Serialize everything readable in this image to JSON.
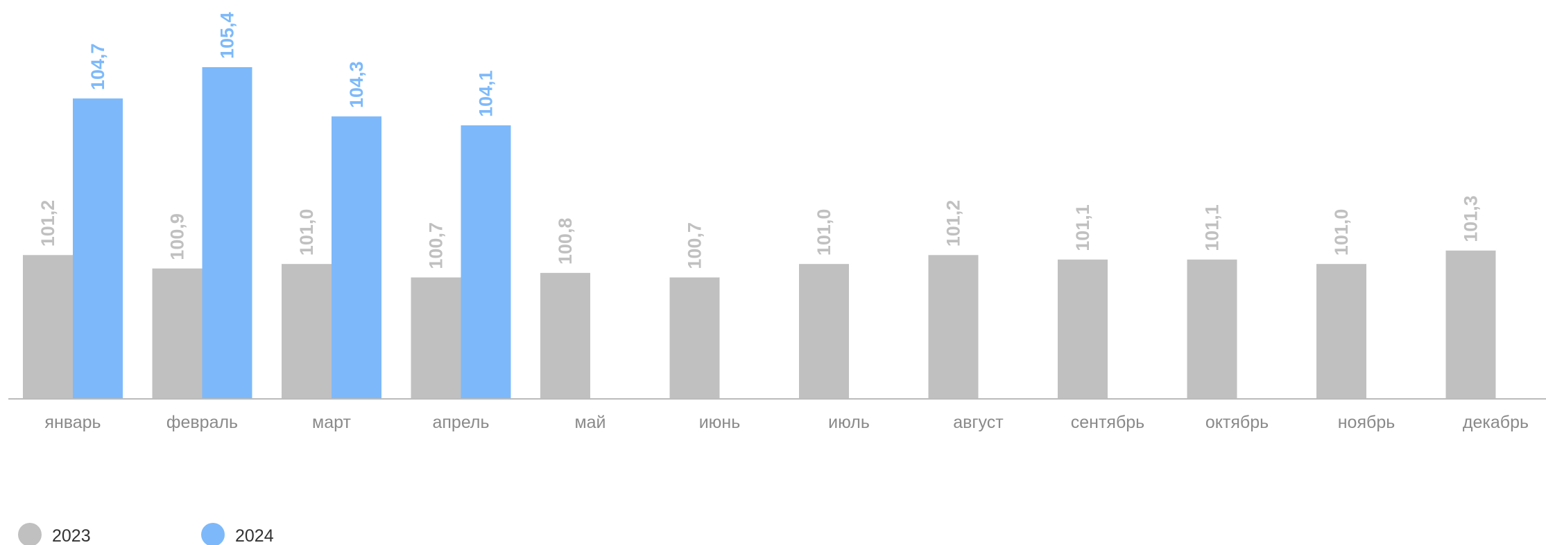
{
  "chart_data": {
    "type": "bar",
    "categories": [
      "январь",
      "февраль",
      "март",
      "апрель",
      "май",
      "июнь",
      "июль",
      "август",
      "сентябрь",
      "октябрь",
      "ноябрь",
      "декабрь"
    ],
    "series": [
      {
        "name": "2023",
        "color": "#c0c0c0",
        "label_color": "#c0c0c0",
        "values": [
          101.2,
          100.9,
          101.0,
          100.7,
          100.8,
          100.7,
          101.0,
          101.2,
          101.1,
          101.1,
          101.0,
          101.3
        ],
        "labels": [
          "101,2",
          "100,9",
          "101,0",
          "100,7",
          "100,8",
          "100,7",
          "101,0",
          "101,2",
          "101,1",
          "101,1",
          "101,0",
          "101,3"
        ]
      },
      {
        "name": "2024",
        "color": "#7db9fa",
        "label_color": "#7db9fa",
        "values": [
          104.7,
          105.4,
          104.3,
          104.1,
          null,
          null,
          null,
          null,
          null,
          null,
          null,
          null
        ],
        "labels": [
          "104,7",
          "105,4",
          "104,3",
          "104,1",
          "",
          "",
          "",
          "",
          "",
          "",
          "",
          ""
        ]
      }
    ],
    "ylim": [
      98.0,
      105.4
    ],
    "title": "",
    "xlabel": "",
    "ylabel": "",
    "grid": false,
    "legend_position": "bottom-left",
    "axis_color": "#bbbbbb"
  }
}
